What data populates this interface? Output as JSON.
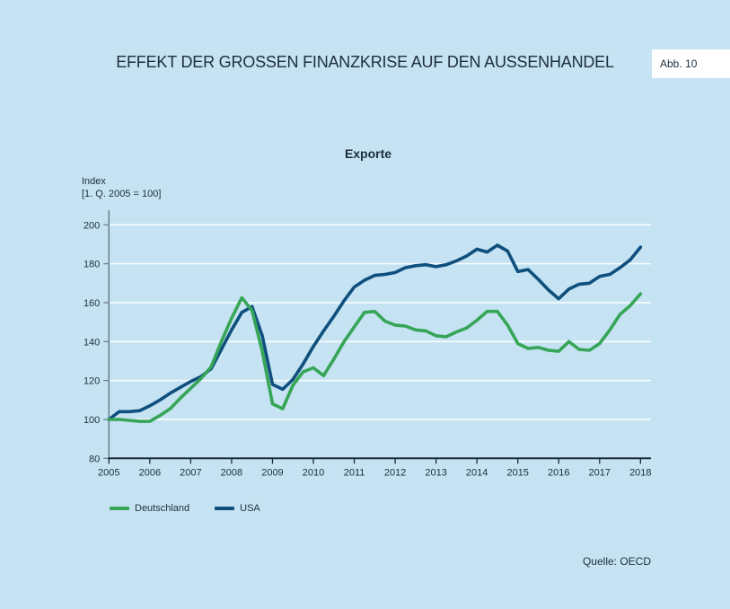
{
  "header": {
    "title": "EFFEKT DER GROSSEN FINANZKRISE AUF DEN AUSSENHANDEL",
    "figure_label": "Abb. 10"
  },
  "footer": {
    "source": "Quelle: OECD"
  },
  "colors": {
    "background": "#c5e3f2",
    "germany_line": "#36a557",
    "usa_line": "#0f4f7e",
    "x_axis": "#16293a",
    "y_axis": "#68808f",
    "gridline": "rgba(255,255,255,0.9)",
    "text": "#1d2e3d",
    "badge_background": "#ffffff"
  },
  "chart_data": {
    "type": "line",
    "title": "Exporte",
    "ylabel_line1": "Index",
    "ylabel_line2": "[1. Q. 2005 = 100]",
    "x_ticks": [
      "2005",
      "2006",
      "2007",
      "2008",
      "2009",
      "2010",
      "2011",
      "2012",
      "2013",
      "2014",
      "2015",
      "2016",
      "2017",
      "2018"
    ],
    "y_ticks": [
      80,
      100,
      120,
      140,
      160,
      180,
      200
    ],
    "ylim": [
      80,
      208
    ],
    "x_range": [
      "2005 Q1",
      "2018 Q1"
    ],
    "points_per_year": 4,
    "grid": "horizontal-white",
    "legend_position": "bottom-left",
    "series": [
      {
        "name": "Deutschland",
        "color": "#36a557",
        "values": [
          100,
          100,
          99.5,
          99,
          99,
          102,
          105.5,
          111,
          116,
          121,
          127,
          140,
          152,
          162.5,
          156,
          135,
          108,
          105.5,
          117.5,
          124.5,
          126.5,
          122.5,
          131,
          140,
          147.5,
          155,
          155.5,
          150.5,
          148.5,
          148,
          146,
          145.5,
          143,
          142.5,
          145,
          147,
          151,
          155.5,
          155.5,
          148.5,
          139,
          136.5,
          137,
          135.5,
          135,
          140,
          136,
          135.5,
          139,
          146,
          154,
          158.5,
          164.5
        ]
      },
      {
        "name": "USA",
        "color": "#0f4f7e",
        "values": [
          100,
          104,
          104,
          104.5,
          107,
          110,
          113.5,
          116.5,
          119.5,
          122,
          126,
          136,
          146,
          155,
          158,
          143,
          118,
          115.5,
          120.5,
          128.5,
          137.5,
          145.5,
          153,
          161,
          168,
          171.5,
          174,
          174.5,
          175.5,
          178,
          179,
          179.5,
          178.5,
          179.5,
          181.5,
          184,
          187.5,
          186,
          189.5,
          186.5,
          176,
          177,
          172,
          166.5,
          162,
          167,
          169.5,
          170,
          173.5,
          174.5,
          178,
          182,
          188.5
        ]
      }
    ]
  }
}
